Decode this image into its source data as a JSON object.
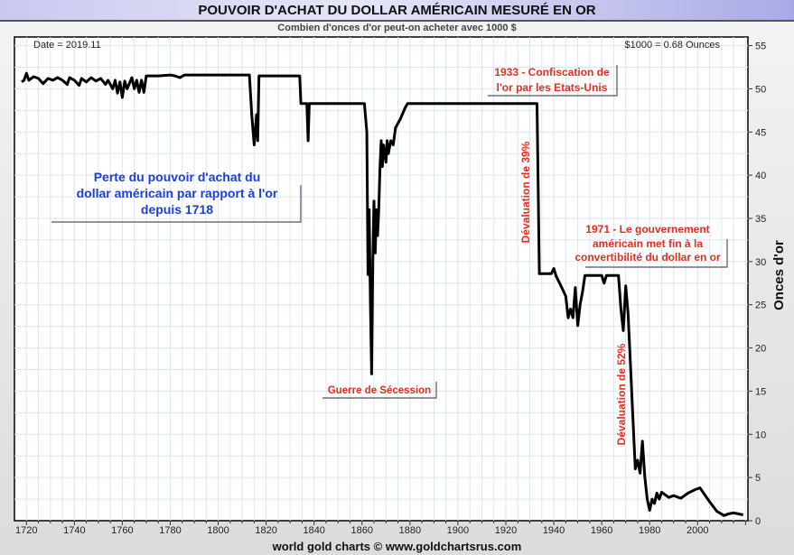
{
  "chart_data": {
    "type": "line",
    "title": "POUVOIR D'ACHAT DU DOLLAR AMÉRICAIN MESURÉ EN OR",
    "subtitle": "Combien d'onces d'or peut-on acheter avec 1000 $",
    "ylabel": "Onces d'or",
    "xlabel": "",
    "xlim": [
      1715,
      2021
    ],
    "ylim": [
      0,
      56
    ],
    "x_ticks": [
      1720,
      1740,
      1760,
      1780,
      1800,
      1820,
      1840,
      1860,
      1880,
      1900,
      1920,
      1940,
      1960,
      1980,
      2000
    ],
    "y_ticks": [
      0,
      5,
      10,
      15,
      20,
      25,
      30,
      35,
      40,
      45,
      50,
      55
    ],
    "y_axis_side": "right",
    "grid": true,
    "line_color": "#000000",
    "date_label": "Date = 2019.11",
    "value_label": "$1000 = 0.68 Ounces",
    "annotations": {
      "main": [
        "Perte du pouvoir d'achat du",
        "dollar américain par rapport à l'or",
        "depuis 1718"
      ],
      "civil_war": "Guerre de Sécession",
      "confiscation": [
        "1933 - Confiscation de",
        "l'or par les Etats-Unis"
      ],
      "deval39": "Dévaluation de 39%",
      "deval52": "Dévaluation de 52%",
      "nixon": [
        "1971 - Le gouvernement",
        "américain met fin à la",
        "convertibilité du dollar en or"
      ]
    },
    "annotation_colors": {
      "main": "#1a3fd6",
      "events": "#e03020"
    },
    "points": [
      [
        1718,
        50.8
      ],
      [
        1719,
        51
      ],
      [
        1720,
        51.8
      ],
      [
        1721,
        51
      ],
      [
        1723,
        51.4
      ],
      [
        1725,
        51.2
      ],
      [
        1727,
        50.6
      ],
      [
        1729,
        51.2
      ],
      [
        1731,
        51.0
      ],
      [
        1733,
        51.3
      ],
      [
        1735,
        51.0
      ],
      [
        1737,
        50.5
      ],
      [
        1738,
        51.3
      ],
      [
        1740,
        51.0
      ],
      [
        1742,
        50.4
      ],
      [
        1743,
        51.2
      ],
      [
        1745,
        50.8
      ],
      [
        1747,
        51.3
      ],
      [
        1749,
        50.9
      ],
      [
        1751,
        51.2
      ],
      [
        1753,
        50.5
      ],
      [
        1754,
        51.0
      ],
      [
        1756,
        50.0
      ],
      [
        1757,
        51.0
      ],
      [
        1758,
        49.5
      ],
      [
        1759,
        50.8
      ],
      [
        1760,
        49.0
      ],
      [
        1761,
        50.9
      ],
      [
        1762,
        50.0
      ],
      [
        1764,
        51.3
      ],
      [
        1765,
        50.0
      ],
      [
        1766,
        51.0
      ],
      [
        1767,
        49.6
      ],
      [
        1768,
        51.0
      ],
      [
        1769,
        49.6
      ],
      [
        1770,
        51.5
      ],
      [
        1775,
        51.5
      ],
      [
        1780,
        51.6
      ],
      [
        1782,
        51.5
      ],
      [
        1784,
        51.3
      ],
      [
        1786,
        51.6
      ],
      [
        1813,
        51.6
      ],
      [
        1814,
        47
      ],
      [
        1815,
        43.5
      ],
      [
        1816,
        47
      ],
      [
        1816.5,
        44
      ],
      [
        1817,
        51.5
      ],
      [
        1834,
        51.5
      ],
      [
        1834.5,
        48.3
      ],
      [
        1837,
        48.3
      ],
      [
        1837.5,
        44
      ],
      [
        1838,
        48.3
      ],
      [
        1861,
        48.3
      ],
      [
        1862,
        45
      ],
      [
        1862.5,
        28.5
      ],
      [
        1863,
        36
      ],
      [
        1863.5,
        25
      ],
      [
        1864,
        17
      ],
      [
        1864.5,
        30
      ],
      [
        1865,
        37
      ],
      [
        1865.5,
        31
      ],
      [
        1866,
        36
      ],
      [
        1866.5,
        33
      ],
      [
        1867,
        36
      ],
      [
        1867.5,
        41
      ],
      [
        1868,
        44
      ],
      [
        1868.5,
        41
      ],
      [
        1869,
        43.5
      ],
      [
        1870,
        41.5
      ],
      [
        1870.5,
        44
      ],
      [
        1871,
        42.5
      ],
      [
        1872,
        44
      ],
      [
        1873,
        43.5
      ],
      [
        1874,
        45.5
      ],
      [
        1876,
        46.5
      ],
      [
        1878,
        47.8
      ],
      [
        1879,
        48.3
      ],
      [
        1933,
        48.3
      ],
      [
        1934,
        28.6
      ],
      [
        1939,
        28.6
      ],
      [
        1940,
        29.2
      ],
      [
        1941,
        28.3
      ],
      [
        1943,
        27.2
      ],
      [
        1945,
        26
      ],
      [
        1946,
        23.5
      ],
      [
        1947,
        24.5
      ],
      [
        1948,
        23.5
      ],
      [
        1949,
        27
      ],
      [
        1950,
        22.6
      ],
      [
        1951,
        25
      ],
      [
        1952,
        26.5
      ],
      [
        1953,
        28.4
      ],
      [
        1960,
        28.4
      ],
      [
        1961,
        27.5
      ],
      [
        1962,
        28.4
      ],
      [
        1967,
        28.4
      ],
      [
        1968,
        24.5
      ],
      [
        1969,
        22
      ],
      [
        1970,
        27.2
      ],
      [
        1971,
        24
      ],
      [
        1972,
        18
      ],
      [
        1973,
        12
      ],
      [
        1974,
        6
      ],
      [
        1975,
        7
      ],
      [
        1976,
        5.5
      ],
      [
        1977,
        9.2
      ],
      [
        1978,
        5
      ],
      [
        1979,
        2.5
      ],
      [
        1980,
        1.2
      ],
      [
        1981,
        2.5
      ],
      [
        1982,
        2.0
      ],
      [
        1983,
        3.2
      ],
      [
        1984,
        2.5
      ],
      [
        1985,
        3.3
      ],
      [
        1988,
        2.7
      ],
      [
        1990,
        2.9
      ],
      [
        1993,
        2.6
      ],
      [
        1996,
        3.2
      ],
      [
        1999,
        3.6
      ],
      [
        2001,
        3.8
      ],
      [
        2003,
        3.0
      ],
      [
        2005,
        2.2
      ],
      [
        2008,
        1.1
      ],
      [
        2011,
        0.6
      ],
      [
        2013,
        0.8
      ],
      [
        2015,
        0.9
      ],
      [
        2019,
        0.68
      ]
    ]
  },
  "footer": "world gold charts © www.goldchartsrus.com"
}
